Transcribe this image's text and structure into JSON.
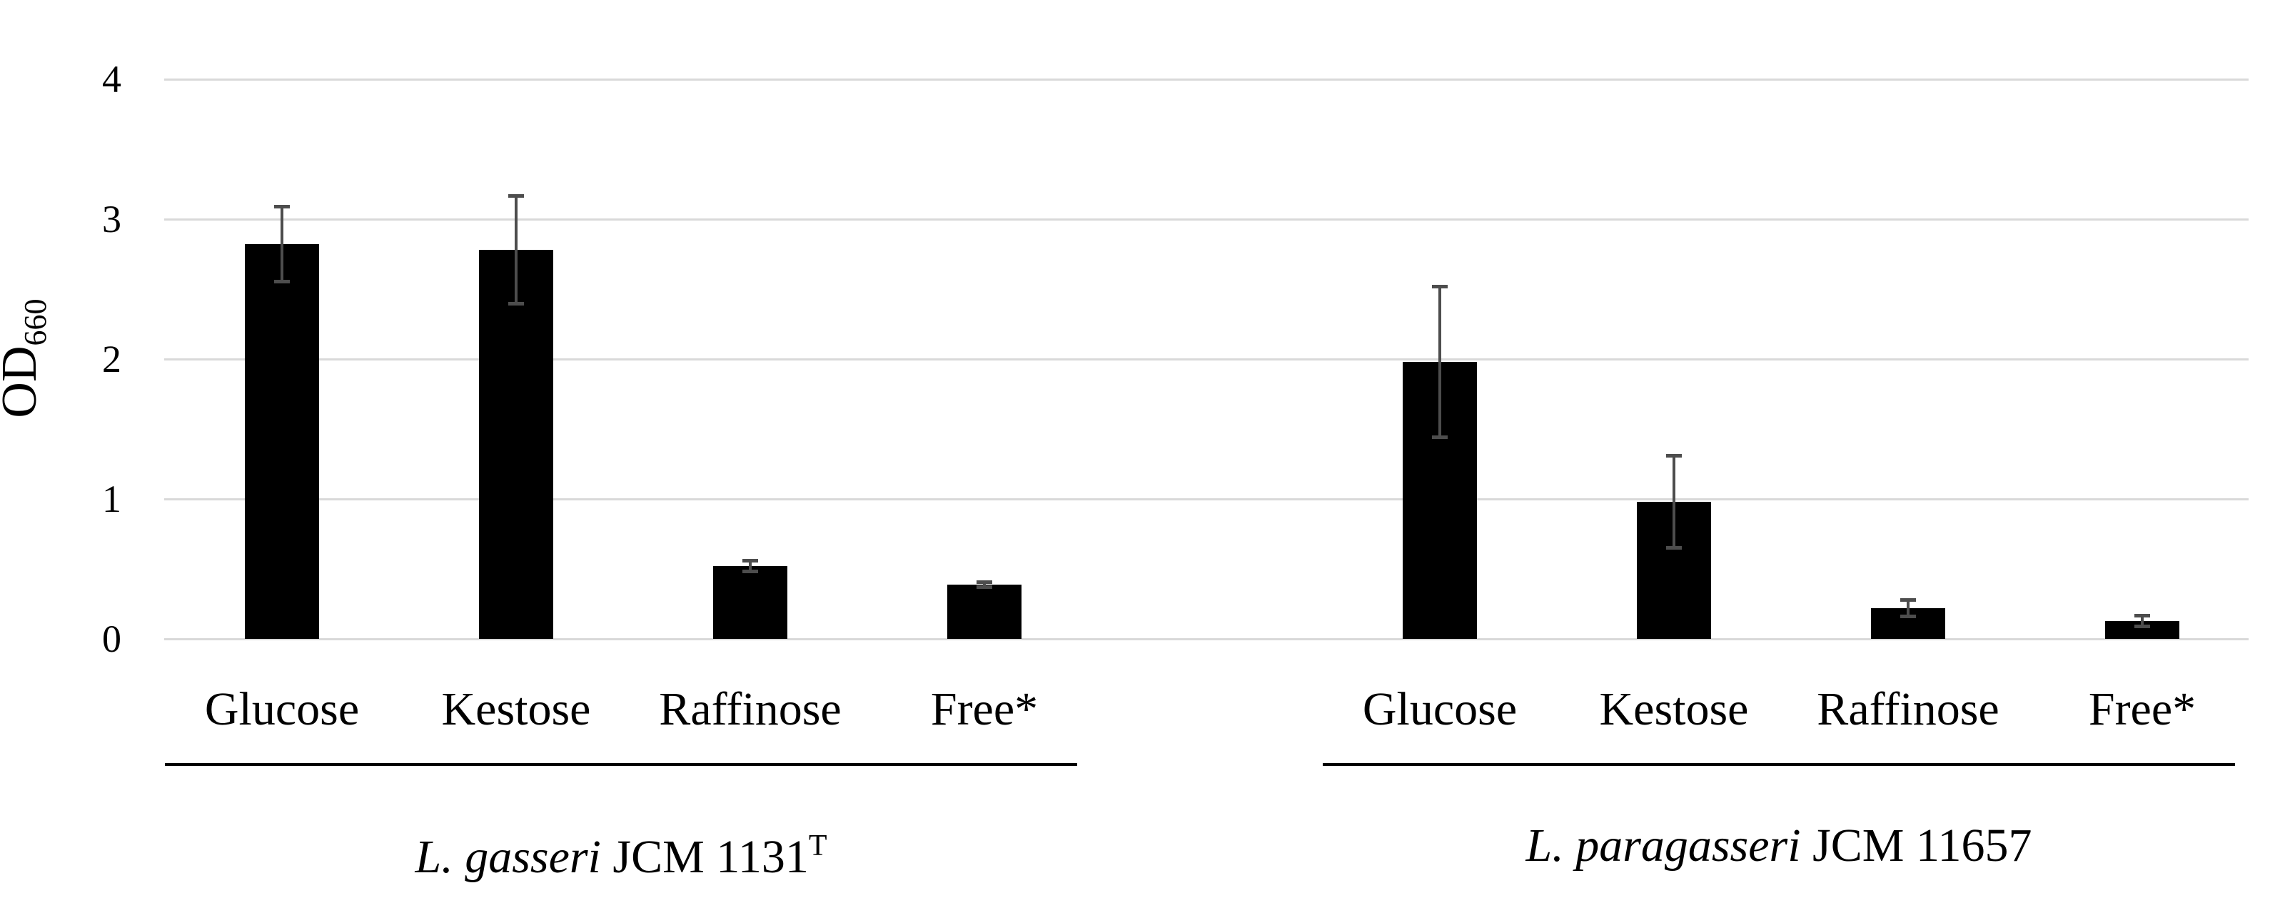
{
  "chart_data": {
    "type": "bar",
    "title": "",
    "ylabel_base": "OD",
    "ylabel_sub": "660",
    "ylim": [
      0,
      4
    ],
    "y_ticks": [
      0,
      1,
      2,
      3,
      4
    ],
    "grid": true,
    "categories": [
      "Glucose",
      "Kestose",
      "Raffinose",
      "Free*"
    ],
    "groups": [
      {
        "caption_species": "L. gasseri",
        "caption_rest": " JCM 1131",
        "caption_sup": "T",
        "values": [
          2.82,
          2.78,
          0.52,
          0.39
        ],
        "errors": [
          0.28,
          0.4,
          0.05,
          0.03
        ]
      },
      {
        "caption_species": "L. paragasseri",
        "caption_rest": " JCM 11657",
        "caption_sup": "",
        "values": [
          1.98,
          0.98,
          0.22,
          0.13
        ],
        "errors": [
          0.55,
          0.34,
          0.07,
          0.05
        ]
      }
    ],
    "colors": {
      "bar": "#000000",
      "error_bar": "#4d4d4d",
      "gridline": "#d9d9d9",
      "axis_line": "#d9d9d9",
      "text": "#000000",
      "underline": "#000000",
      "background": "#ffffff"
    }
  }
}
